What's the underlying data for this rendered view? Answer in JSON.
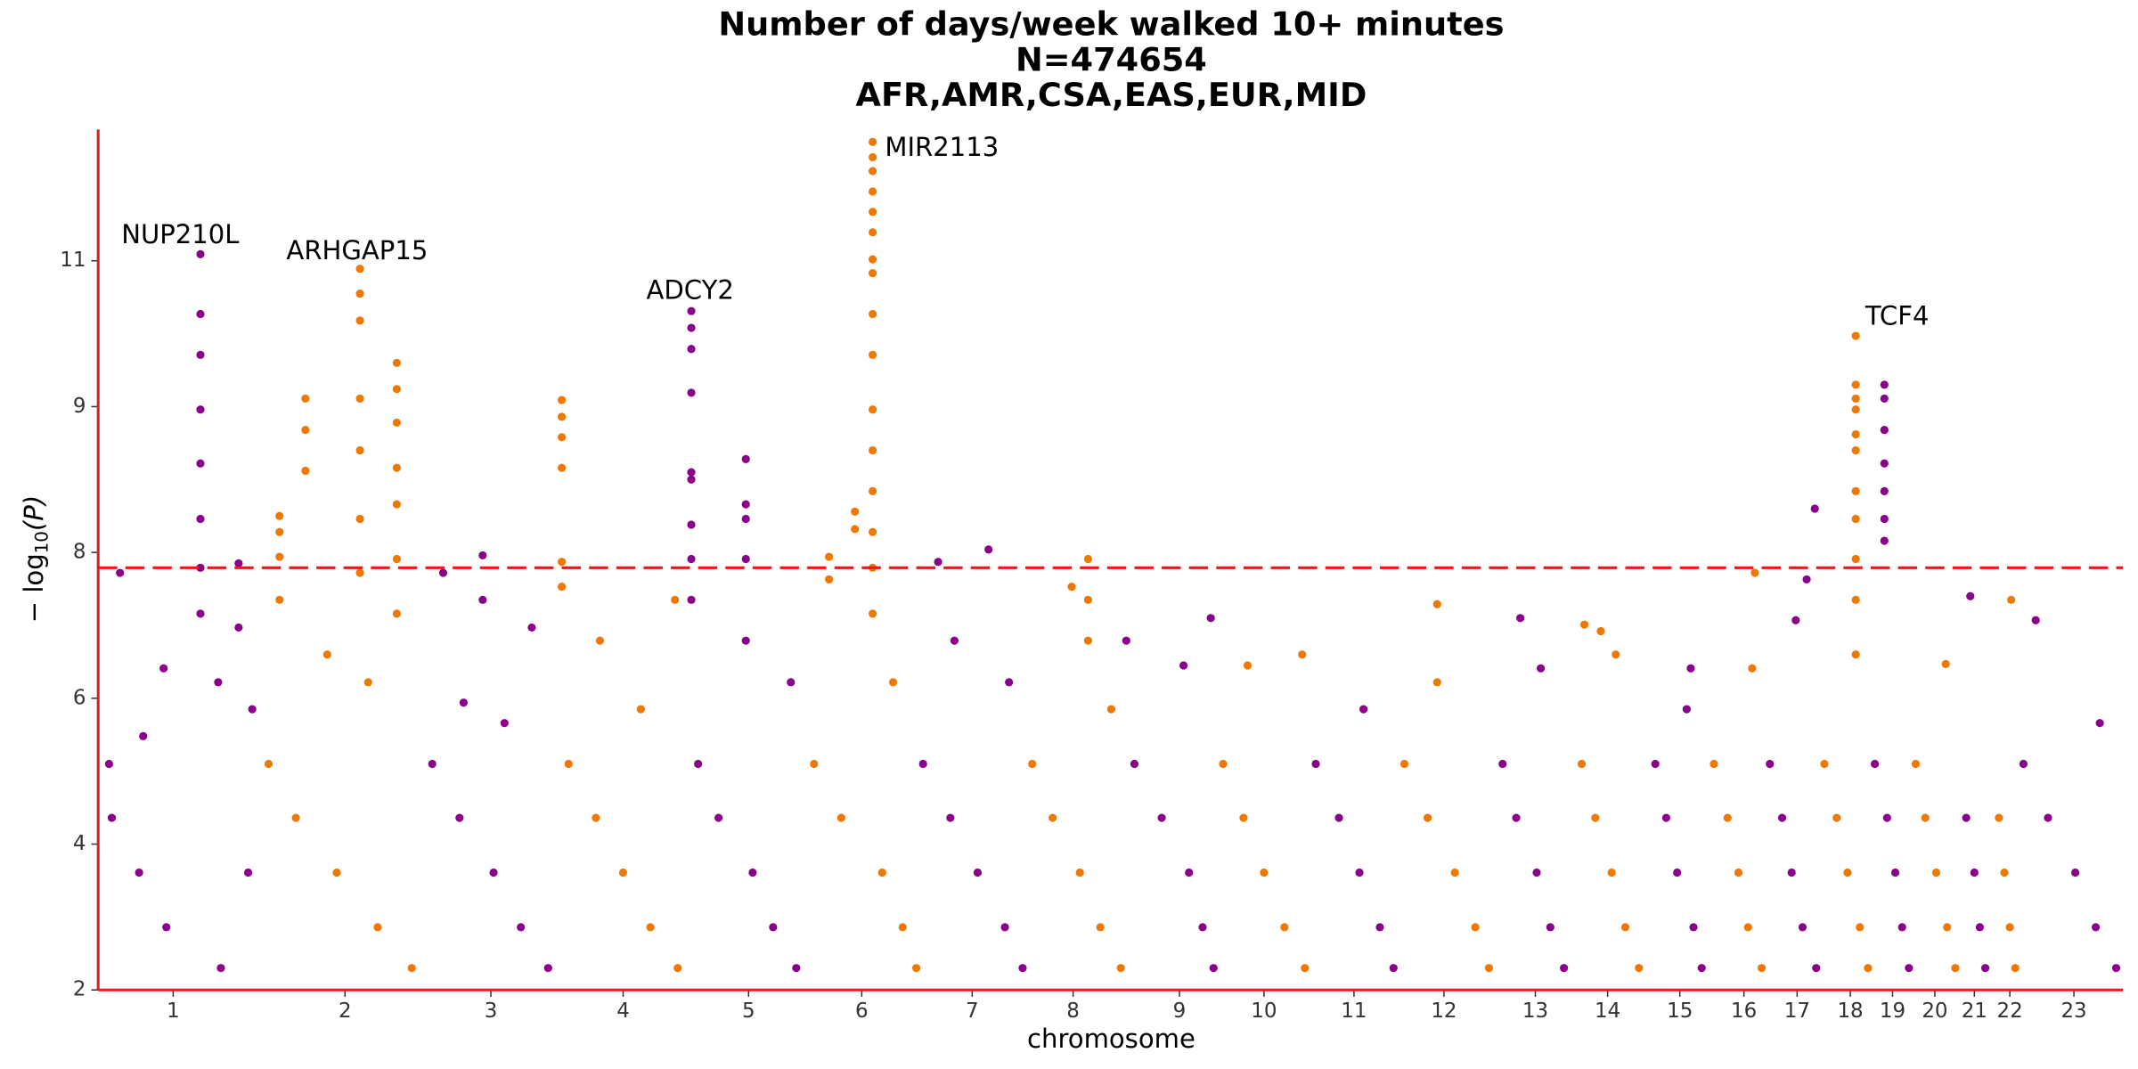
{
  "chart_data": {
    "type": "manhattan",
    "title": [
      "Number of days/week walked 10+ minutes",
      "N=474654",
      "AFR,AMR,CSA,EAS,EUR,MID"
    ],
    "xlabel": "chromosome",
    "ylabel": {
      "prefix": "− log",
      "sub": "10",
      "suffix": "(P)"
    },
    "xlim": [
      0,
      1485
    ],
    "xticks": [
      {
        "value": 55,
        "label": "1"
      },
      {
        "value": 181,
        "label": "2"
      },
      {
        "value": 288,
        "label": "3"
      },
      {
        "value": 385,
        "label": "4"
      },
      {
        "value": 477,
        "label": "5"
      },
      {
        "value": 560,
        "label": "6"
      },
      {
        "value": 641,
        "label": "7"
      },
      {
        "value": 715,
        "label": "8"
      },
      {
        "value": 793,
        "label": "9"
      },
      {
        "value": 855,
        "label": "10"
      },
      {
        "value": 921,
        "label": "11"
      },
      {
        "value": 987,
        "label": "12"
      },
      {
        "value": 1054,
        "label": "13"
      },
      {
        "value": 1107,
        "label": "14"
      },
      {
        "value": 1160,
        "label": "15"
      },
      {
        "value": 1207,
        "label": "16"
      },
      {
        "value": 1246,
        "label": "17"
      },
      {
        "value": 1285,
        "label": "18"
      },
      {
        "value": 1316,
        "label": "19"
      },
      {
        "value": 1347,
        "label": "20"
      },
      {
        "value": 1376,
        "label": "21"
      },
      {
        "value": 1402,
        "label": "22"
      },
      {
        "value": 1449,
        "label": "23"
      }
    ],
    "ylim": [
      2,
      12.8
    ],
    "yticks": [
      2,
      4,
      6,
      8,
      9,
      11
    ],
    "y_scale": "tick-spaced",
    "axis_color": "#e41a1c",
    "threshold": {
      "value": 7.79,
      "color": "#e41a1c",
      "dash": true
    },
    "annotations": [
      "NUP210L",
      "ARHGAP15",
      "ADCY2",
      "MIR2113",
      "TCF4"
    ],
    "series": [
      {
        "color": "#8b008b",
        "x": [
          75,
          75,
          75,
          75,
          75,
          75,
          75,
          75,
          103,
          103,
          16,
          48,
          33,
          8,
          88,
          113,
          10,
          30,
          50,
          90,
          110
        ],
        "values": [
          11.09,
          10.27,
          9.71,
          8.98,
          8.61,
          8.23,
          7.79,
          7.16,
          7.85,
          6.97,
          7.72,
          6.41,
          5.48,
          5.1,
          6.22,
          5.85,
          4.36,
          3.61,
          2.86,
          2.3,
          3.61
        ]
      },
      {
        "color": "#f07800",
        "x": [
          133,
          133,
          133,
          133,
          152,
          152,
          152,
          192,
          192,
          192,
          192,
          192,
          192,
          192,
          219,
          219,
          219,
          219,
          219,
          219,
          219,
          168,
          198,
          125,
          145,
          175,
          205,
          230
        ],
        "values": [
          8.25,
          8.14,
          7.94,
          7.35,
          9.11,
          8.84,
          8.56,
          10.89,
          10.55,
          10.18,
          9.11,
          8.7,
          8.23,
          7.72,
          9.6,
          9.24,
          8.89,
          8.58,
          8.33,
          7.91,
          7.16,
          6.6,
          6.22,
          5.1,
          4.36,
          3.61,
          2.86,
          2.3
        ]
      },
      {
        "color": "#8b008b",
        "x": [
          282,
          282,
          253,
          318,
          298,
          268,
          245,
          265,
          290,
          310,
          330
        ],
        "values": [
          7.96,
          7.35,
          7.72,
          6.97,
          5.66,
          5.94,
          5.1,
          4.36,
          3.61,
          2.86,
          2.3
        ]
      },
      {
        "color": "#f07800",
        "x": [
          340,
          340,
          340,
          340,
          340,
          340,
          368,
          398,
          423,
          345,
          365,
          385,
          405,
          425
        ],
        "values": [
          9.09,
          8.93,
          8.79,
          8.58,
          7.87,
          7.53,
          6.79,
          5.85,
          7.35,
          5.1,
          4.36,
          3.61,
          2.86,
          2.3
        ]
      },
      {
        "color": "#8b008b",
        "x": [
          435,
          435,
          435,
          435,
          435,
          435,
          435,
          435,
          435,
          475,
          475,
          475,
          475,
          475,
          508,
          440,
          455,
          480,
          495,
          512
        ],
        "values": [
          10.31,
          10.08,
          9.79,
          9.19,
          8.55,
          8.5,
          8.19,
          7.91,
          7.35,
          8.64,
          8.33,
          8.23,
          7.91,
          6.79,
          6.22,
          5.1,
          4.36,
          3.61,
          2.86,
          2.3
        ]
      },
      {
        "color": "#f07800",
        "x": [
          568,
          568,
          568,
          568,
          568,
          568,
          568,
          568,
          568,
          568,
          568,
          568,
          568,
          568,
          568,
          568,
          555,
          555,
          536,
          536,
          583,
          525,
          545,
          575,
          590,
          600
        ],
        "values": [
          12.63,
          12.42,
          12.23,
          11.95,
          11.67,
          11.39,
          11.02,
          10.83,
          10.27,
          9.71,
          8.98,
          8.7,
          8.42,
          8.14,
          7.79,
          7.16,
          8.28,
          8.16,
          7.94,
          7.63,
          6.22,
          5.1,
          4.36,
          3.61,
          2.86,
          2.3
        ]
      },
      {
        "color": "#8b008b",
        "x": [
          616,
          653,
          628,
          668,
          605,
          625,
          645,
          665,
          678
        ],
        "values": [
          7.87,
          8.02,
          6.79,
          6.22,
          5.1,
          4.36,
          3.61,
          2.86,
          2.3
        ]
      },
      {
        "color": "#f07800",
        "x": [
          726,
          726,
          726,
          714,
          743,
          685,
          700,
          720,
          735,
          750
        ],
        "values": [
          7.91,
          7.35,
          6.79,
          7.53,
          5.85,
          5.1,
          4.36,
          3.61,
          2.86,
          2.3
        ]
      },
      {
        "color": "#8b008b",
        "x": [
          796,
          816,
          754,
          760,
          780,
          800,
          810,
          818
        ],
        "values": [
          6.45,
          7.1,
          6.79,
          5.1,
          4.36,
          3.61,
          2.86,
          2.3
        ]
      },
      {
        "color": "#f07800",
        "x": [
          843,
          883,
          825,
          840,
          855,
          870,
          885
        ],
        "values": [
          6.45,
          6.6,
          5.1,
          4.36,
          3.61,
          2.86,
          2.3
        ]
      },
      {
        "color": "#8b008b",
        "x": [
          928,
          893,
          910,
          925,
          940,
          950
        ],
        "values": [
          5.85,
          5.1,
          4.36,
          3.61,
          2.86,
          2.3
        ]
      },
      {
        "color": "#f07800",
        "x": [
          982,
          982,
          958,
          975,
          995,
          1010,
          1020
        ],
        "values": [
          7.29,
          6.22,
          5.1,
          4.36,
          3.61,
          2.86,
          2.3
        ]
      },
      {
        "color": "#8b008b",
        "x": [
          1043,
          1058,
          1030,
          1040,
          1055,
          1065,
          1075
        ],
        "values": [
          7.1,
          6.41,
          5.1,
          4.36,
          3.61,
          2.86,
          2.3
        ]
      },
      {
        "color": "#f07800",
        "x": [
          1102,
          1113,
          1090,
          1088,
          1098,
          1110,
          1120,
          1130
        ],
        "values": [
          6.92,
          6.6,
          7.01,
          5.1,
          4.36,
          3.61,
          2.86,
          2.3
        ]
      },
      {
        "color": "#8b008b",
        "x": [
          1165,
          1168,
          1142,
          1150,
          1158,
          1170,
          1176
        ],
        "values": [
          5.85,
          6.41,
          5.1,
          4.36,
          3.61,
          2.86,
          2.3
        ]
      },
      {
        "color": "#f07800",
        "x": [
          1215,
          1213,
          1185,
          1195,
          1203,
          1210,
          1220
        ],
        "values": [
          7.72,
          6.41,
          5.1,
          4.36,
          3.61,
          2.86,
          2.3
        ]
      },
      {
        "color": "#8b008b",
        "x": [
          1245,
          1259,
          1253,
          1226,
          1235,
          1242,
          1250,
          1260
        ],
        "values": [
          7.07,
          8.3,
          7.63,
          5.1,
          4.36,
          3.61,
          2.86,
          2.3
        ]
      },
      {
        "color": "#f07800",
        "x": [
          1289,
          1289,
          1289,
          1289,
          1289,
          1289,
          1289,
          1289,
          1289,
          1289,
          1289,
          1266,
          1275,
          1283,
          1292,
          1298
        ],
        "values": [
          9.97,
          9.3,
          9.11,
          8.98,
          8.81,
          8.7,
          8.42,
          8.23,
          7.91,
          7.35,
          6.6,
          5.1,
          4.36,
          3.61,
          2.86,
          2.3
        ]
      },
      {
        "color": "#8b008b",
        "x": [
          1310,
          1310,
          1310,
          1310,
          1310,
          1310,
          1310,
          1303,
          1312,
          1318,
          1323,
          1328
        ],
        "values": [
          9.3,
          9.11,
          8.84,
          8.61,
          8.42,
          8.23,
          8.08,
          5.1,
          4.36,
          3.61,
          2.86,
          2.3
        ]
      },
      {
        "color": "#f07800",
        "x": [
          1355,
          1333,
          1340,
          1348,
          1356,
          1362
        ],
        "values": [
          6.47,
          5.1,
          4.36,
          3.61,
          2.86,
          2.3
        ]
      },
      {
        "color": "#8b008b",
        "x": [
          1373,
          1370,
          1376,
          1380,
          1384
        ],
        "values": [
          7.4,
          4.36,
          3.61,
          2.86,
          2.3
        ]
      },
      {
        "color": "#f07800",
        "x": [
          1403,
          1394,
          1398,
          1402,
          1406
        ],
        "values": [
          7.35,
          4.36,
          3.61,
          2.86,
          2.3
        ]
      },
      {
        "color": "#8b008b",
        "x": [
          1421,
          1468,
          1412,
          1430,
          1450,
          1465,
          1480
        ],
        "values": [
          7.07,
          5.66,
          5.1,
          4.36,
          3.61,
          2.86,
          2.3
        ]
      }
    ]
  }
}
